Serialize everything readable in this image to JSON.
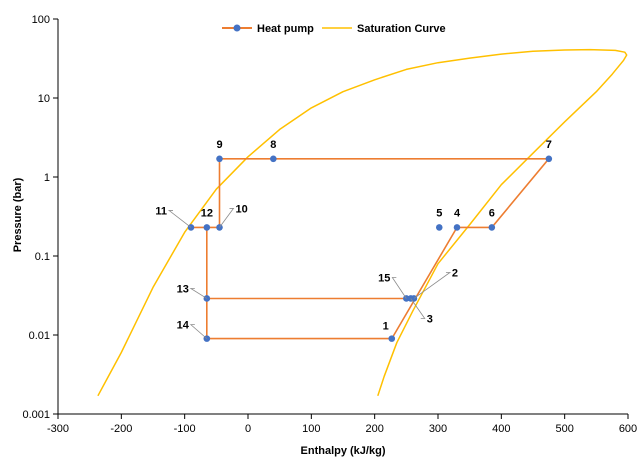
{
  "chart_data": {
    "type": "line",
    "xlabel": "Enthalpy (kJ/kg)",
    "ylabel": "Pressure (bar)",
    "xlim": [
      -300,
      600
    ],
    "ylim": [
      0.001,
      100
    ],
    "yscale": "log",
    "x_ticks": [
      "-300",
      "-200",
      "-100",
      "0",
      "100",
      "200",
      "300",
      "400",
      "500",
      "600"
    ],
    "y_ticks": [
      "0.001",
      "0.01",
      "0.1",
      "1",
      "10",
      "100"
    ],
    "legend_position": "top",
    "grid": false,
    "colors": {
      "heat_pump_line": "#ED7D31",
      "heat_pump_marker": "#4472C4",
      "saturation": "#FFC000"
    },
    "series": [
      {
        "name": "Heat pump",
        "points": [
          {
            "label": "1",
            "x": 227,
            "y": 0.009
          },
          {
            "label": "2",
            "x": 262,
            "y": 0.029
          },
          {
            "label": "3",
            "x": 257,
            "y": 0.029
          },
          {
            "label": "4",
            "x": 330,
            "y": 0.23
          },
          {
            "label": "5",
            "x": 302,
            "y": 0.23
          },
          {
            "label": "6",
            "x": 385,
            "y": 0.23
          },
          {
            "label": "7",
            "x": 475,
            "y": 1.7
          },
          {
            "label": "8",
            "x": 40,
            "y": 1.7
          },
          {
            "label": "9",
            "x": -45,
            "y": 1.7
          },
          {
            "label": "10",
            "x": -45,
            "y": 0.23
          },
          {
            "label": "11",
            "x": -90,
            "y": 0.23
          },
          {
            "label": "12",
            "x": -65,
            "y": 0.23
          },
          {
            "label": "13",
            "x": -65,
            "y": 0.029
          },
          {
            "label": "14",
            "x": -65,
            "y": 0.009
          },
          {
            "label": "15",
            "x": 250,
            "y": 0.029
          }
        ],
        "path": [
          [
            227,
            0.009
          ],
          [
            330,
            0.23
          ],
          [
            385,
            0.23
          ],
          [
            475,
            1.7
          ],
          [
            -45,
            1.7
          ],
          [
            -45,
            0.23
          ],
          [
            -90,
            0.23
          ],
          [
            -65,
            0.23
          ],
          [
            -65,
            0.029
          ],
          [
            262,
            0.029
          ],
          [
            -65,
            0.029
          ],
          [
            -65,
            0.009
          ],
          [
            227,
            0.009
          ]
        ]
      },
      {
        "name": "Saturation Curve",
        "path": [
          [
            -237,
            0.0017
          ],
          [
            -200,
            0.006
          ],
          [
            -150,
            0.04
          ],
          [
            -100,
            0.2
          ],
          [
            -50,
            0.7
          ],
          [
            0,
            1.8
          ],
          [
            50,
            4
          ],
          [
            100,
            7.5
          ],
          [
            150,
            12
          ],
          [
            200,
            17
          ],
          [
            250,
            23
          ],
          [
            300,
            28
          ],
          [
            350,
            32
          ],
          [
            400,
            36
          ],
          [
            450,
            39
          ],
          [
            500,
            40.5
          ],
          [
            540,
            41
          ],
          [
            580,
            40
          ],
          [
            595,
            38
          ],
          [
            598,
            35
          ],
          [
            593,
            30
          ],
          [
            575,
            20
          ],
          [
            550,
            12
          ],
          [
            500,
            5
          ],
          [
            450,
            2
          ],
          [
            400,
            0.8
          ],
          [
            350,
            0.25
          ],
          [
            300,
            0.08
          ],
          [
            260,
            0.02
          ],
          [
            235,
            0.008
          ],
          [
            215,
            0.003
          ],
          [
            205,
            0.0017
          ]
        ]
      }
    ]
  }
}
